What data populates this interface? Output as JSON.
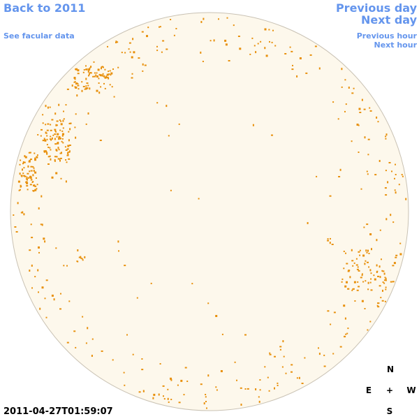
{
  "links": {
    "back": "Back to 2011",
    "facular": "See facular data",
    "previous_day": "Previous day",
    "next_day": "Next day",
    "previous_hour": "Previous hour",
    "next_hour": "Next hour"
  },
  "timestamp": "2011-04-27T01:59:07",
  "compass": {
    "north": "N",
    "east": "E",
    "center": "+",
    "west": "W",
    "south": "S"
  }
}
